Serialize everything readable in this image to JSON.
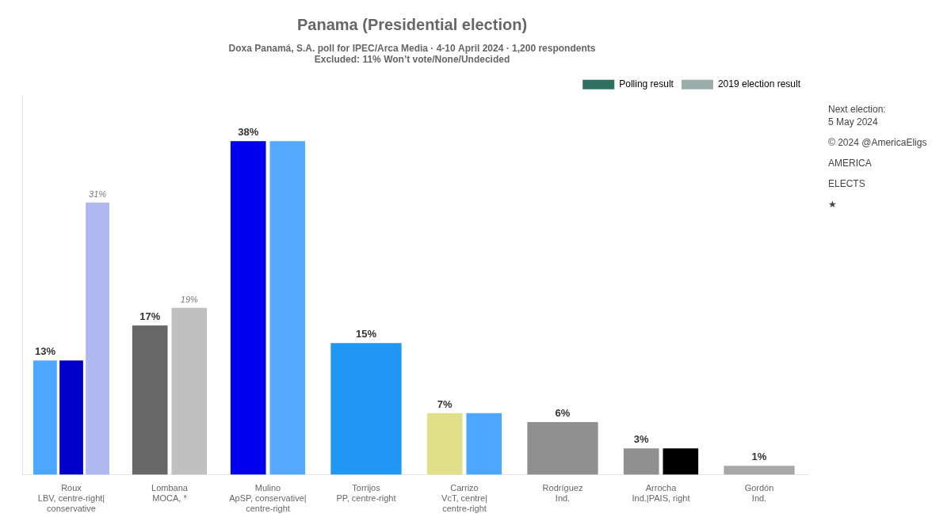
{
  "chart_data": {
    "type": "bar",
    "title": "Panama (Presidential election)",
    "subtitle": [
      "Doxa Panamá, S.A. poll for IPEC/Arca Media · 4-10 April 2024 · 1,200 respondents",
      "Excluded: 11% Won’t vote/None/Undecided"
    ],
    "categories": [
      "Roux",
      "Lombana",
      "Mulino",
      "Torrijos",
      "Carrizo",
      "Rodríguez",
      "Arrocha",
      "Gordón"
    ],
    "parties": [
      "LBV, centre-right|conservative",
      "MOCA, *",
      "ApSP, conservative|centre-right",
      "PP, centre-right",
      "VcT, centre|centre-right",
      "Ind.",
      "Ind.|PAIS, right",
      "Ind."
    ],
    "series": [
      {
        "name": "Polling result",
        "color": "#2d7060",
        "colors": [
          "#4da6ff",
          "#686868",
          "#0000ee",
          "#2196f3",
          "#e0e08a",
          "#909090",
          "#909090",
          "#a8a8a8"
        ],
        "values": [
          13,
          17,
          38,
          15,
          7,
          6,
          3,
          1
        ],
        "value_labels": [
          "13%",
          "17%",
          "38%",
          "15%",
          "7%",
          "6%",
          "3%",
          "1%"
        ],
        "data_labels": true
      },
      {
        "colors": [
          "#0000cc",
          null,
          "#55aaff",
          null,
          "#4da6ff",
          null,
          "#000000",
          null
        ],
        "values": [
          13,
          null,
          38,
          null,
          7,
          null,
          3,
          null
        ],
        "data_labels": false
      },
      {
        "name": "2019 election result",
        "color": "#9aada8",
        "colors": [
          "#b0b8f0",
          "#c0c0c0",
          null,
          null,
          null,
          null,
          null,
          null
        ],
        "values": [
          31,
          19,
          null,
          null,
          null,
          null,
          null,
          null
        ],
        "value_labels": [
          "31%",
          "19%",
          null,
          null,
          null,
          null,
          null,
          null
        ],
        "data_labels": true
      }
    ],
    "ylim": [
      0,
      43
    ],
    "grid": false,
    "tick_labels": "x",
    "legend": "top-right",
    "annotations": [
      "Next election:\n5 May 2024",
      "© 2024 @AmericaEligs",
      "AMERICA",
      "ELECTS",
      "★"
    ]
  }
}
